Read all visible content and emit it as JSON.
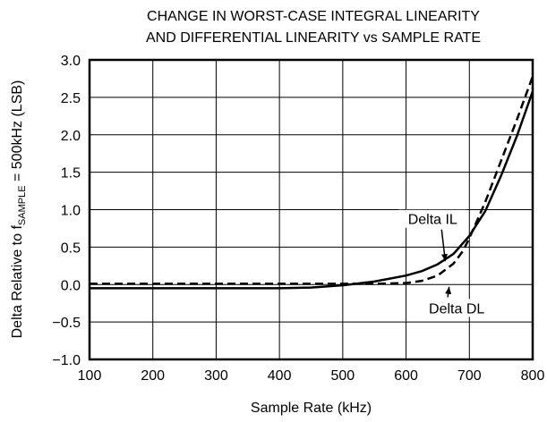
{
  "chart_data": {
    "type": "line",
    "title_lines": [
      "CHANGE IN WORST-CASE INTEGRAL LINEARITY",
      "AND DIFFERENTIAL LINEARITY vs SAMPLE RATE"
    ],
    "xlabel": "Sample Rate (kHz)",
    "ylabel": {
      "prefix": "Delta Relative to f",
      "subscript": "SAMPLE",
      "suffix": " = 500kHz (LSB)"
    },
    "xlim": [
      100,
      800
    ],
    "ylim": [
      -1.0,
      3.0
    ],
    "x_ticks": [
      100,
      200,
      300,
      400,
      500,
      600,
      700,
      800
    ],
    "y_ticks": [
      -1.0,
      -0.5,
      0.0,
      0.5,
      1.0,
      1.5,
      2.0,
      2.5,
      3.0
    ],
    "x_tick_labels": [
      "100",
      "200",
      "300",
      "400",
      "500",
      "600",
      "700",
      "800"
    ],
    "y_tick_labels": [
      "−1.0",
      "−0.5",
      "0.0",
      "0.5",
      "1.0",
      "1.5",
      "2.0",
      "2.5",
      "3.0"
    ],
    "grid": true,
    "series": [
      {
        "name": "Delta IL",
        "style": "solid",
        "x": [
          100,
          200,
          300,
          400,
          450,
          500,
          550,
          600,
          625,
          650,
          675,
          700,
          725,
          750,
          775,
          800
        ],
        "y": [
          -0.05,
          -0.05,
          -0.05,
          -0.05,
          -0.04,
          -0.01,
          0.04,
          0.12,
          0.18,
          0.27,
          0.41,
          0.65,
          0.98,
          1.45,
          1.98,
          2.58
        ]
      },
      {
        "name": "Delta DL",
        "style": "dashed",
        "x": [
          100,
          200,
          300,
          400,
          500,
          550,
          600,
          625,
          650,
          675,
          690,
          700,
          725,
          750,
          775,
          800
        ],
        "y": [
          0.01,
          0.01,
          0.01,
          0.01,
          0.01,
          0.01,
          0.02,
          0.05,
          0.12,
          0.28,
          0.45,
          0.62,
          1.1,
          1.65,
          2.2,
          2.78
        ]
      }
    ],
    "annotations": [
      {
        "text": "Delta IL",
        "x": 642,
        "y": 0.83,
        "arrow_to": [
          662,
          0.31
        ]
      },
      {
        "text": "Delta DL",
        "x": 680,
        "y": -0.36,
        "arrow_to": [
          668,
          -0.03
        ]
      }
    ]
  }
}
